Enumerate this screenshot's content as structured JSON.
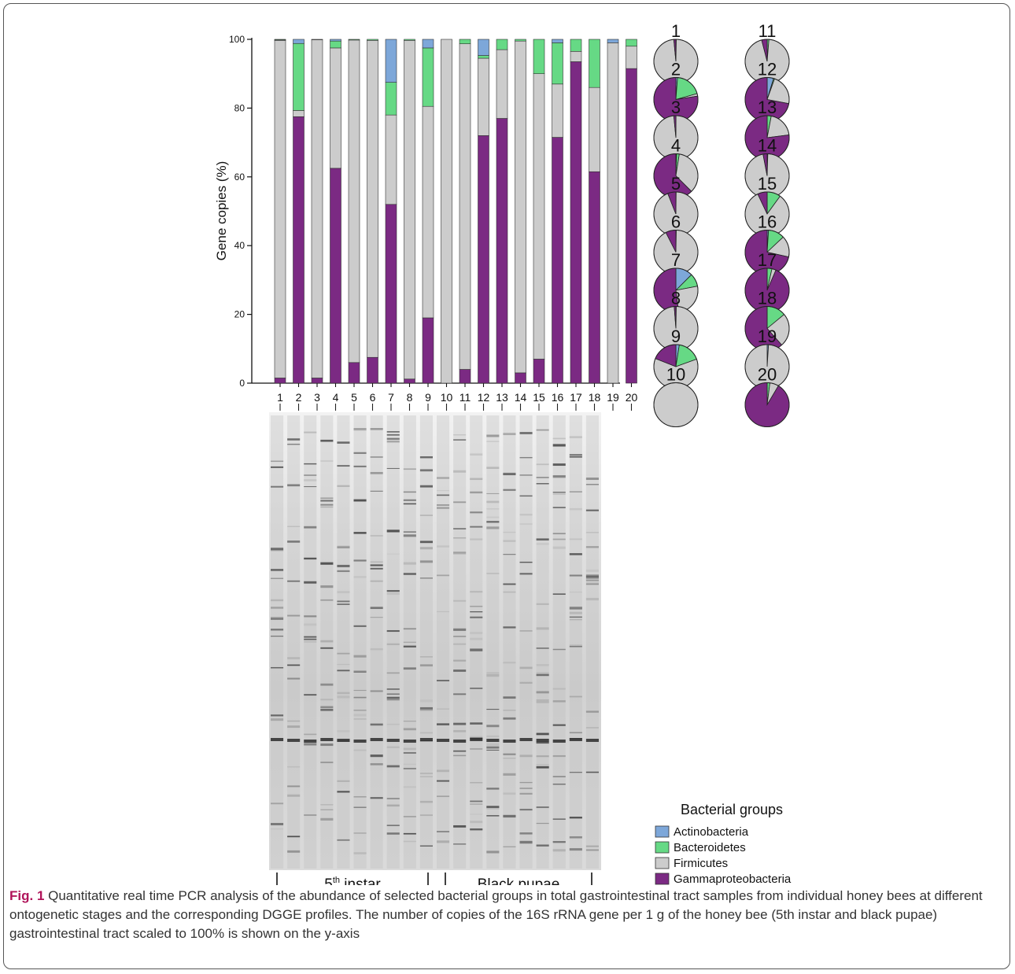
{
  "chart_data": [
    {
      "type": "bar",
      "stacked": true,
      "ylabel": "Gene copies (%)",
      "xlabel": "",
      "ylim": [
        0,
        100
      ],
      "yticks": [
        0,
        20,
        40,
        60,
        80,
        100
      ],
      "categories": [
        "1",
        "2",
        "3",
        "4",
        "5",
        "6",
        "7",
        "8",
        "9",
        "10",
        "11",
        "12",
        "13",
        "14",
        "15",
        "16",
        "17",
        "18",
        "19",
        "20"
      ],
      "series": [
        {
          "name": "Gammaproteobacteria",
          "color": "#7b2a83",
          "values": [
            1.5,
            77.5,
            1.5,
            62.5,
            6,
            7.5,
            52,
            1.2,
            19,
            0,
            4,
            72,
            77,
            3,
            7,
            71.5,
            93.5,
            61.5,
            0,
            91.5
          ]
        },
        {
          "name": "Firmicutes",
          "color": "#cccccc",
          "values": [
            98.2,
            1.8,
            98.4,
            35,
            93.8,
            92.2,
            26,
            98.5,
            61.5,
            100,
            94.7,
            22.5,
            20,
            96.5,
            83,
            15.5,
            3,
            24.5,
            99,
            6.5
          ]
        },
        {
          "name": "Bacteroidetes",
          "color": "#66d985",
          "values": [
            0.2,
            19.5,
            0.1,
            2,
            0.2,
            0.3,
            9.5,
            0.3,
            17,
            0,
            1.3,
            0.8,
            3,
            0.5,
            10,
            12,
            3.5,
            14,
            0,
            2
          ]
        },
        {
          "name": "Actinobacteria",
          "color": "#7da7d9",
          "values": [
            0.1,
            1.2,
            0,
            0.5,
            0,
            0,
            12.5,
            0,
            2.5,
            0,
            0,
            4.7,
            0,
            0,
            0,
            1,
            0,
            0,
            1,
            0
          ]
        }
      ]
    },
    {
      "type": "pie",
      "count": 20,
      "series_order": [
        "Actinobacteria",
        "Bacteroidetes",
        "Firmicutes",
        "Gammaproteobacteria"
      ],
      "pies": [
        {
          "label": "1",
          "values": [
            0.1,
            0.2,
            98.2,
            1.5
          ]
        },
        {
          "label": "2",
          "values": [
            1.2,
            19.5,
            1.8,
            77.5
          ]
        },
        {
          "label": "3",
          "values": [
            0,
            0.1,
            98.4,
            1.5
          ]
        },
        {
          "label": "4",
          "values": [
            0.5,
            2,
            35,
            62.5
          ]
        },
        {
          "label": "5",
          "values": [
            0,
            0.2,
            93.8,
            6
          ]
        },
        {
          "label": "6",
          "values": [
            0,
            0.3,
            92.2,
            7.5
          ]
        },
        {
          "label": "7",
          "values": [
            12.5,
            9.5,
            26,
            52
          ]
        },
        {
          "label": "8",
          "values": [
            0,
            0.3,
            98.5,
            1.2
          ]
        },
        {
          "label": "9",
          "values": [
            2.5,
            17,
            61.5,
            19
          ]
        },
        {
          "label": "10",
          "values": [
            0,
            0,
            100,
            0
          ]
        },
        {
          "label": "11",
          "values": [
            0,
            1.3,
            94.7,
            4
          ]
        },
        {
          "label": "12",
          "values": [
            4.7,
            0.8,
            22.5,
            72
          ]
        },
        {
          "label": "13",
          "values": [
            0,
            3,
            20,
            77
          ]
        },
        {
          "label": "14",
          "values": [
            0,
            0.5,
            96.5,
            3
          ]
        },
        {
          "label": "15",
          "values": [
            0,
            10,
            83,
            7
          ]
        },
        {
          "label": "16",
          "values": [
            1,
            12,
            15.5,
            71.5
          ]
        },
        {
          "label": "17",
          "values": [
            0,
            3.5,
            3,
            93.5
          ]
        },
        {
          "label": "18",
          "values": [
            0,
            14,
            24.5,
            61.5
          ]
        },
        {
          "label": "19",
          "values": [
            1,
            0,
            99,
            0
          ]
        },
        {
          "label": "20",
          "values": [
            0,
            2,
            6.5,
            91.5
          ]
        }
      ]
    }
  ],
  "gel": {
    "groups": [
      {
        "label": "5",
        "sup": "th",
        "text": " instar"
      },
      {
        "label": "Black pupae",
        "sup": "",
        "text": ""
      }
    ]
  },
  "legend": {
    "title": "Bacterial groups",
    "items": [
      {
        "name": "Actinobacteria",
        "color": "#7da7d9"
      },
      {
        "name": "Bacteroidetes",
        "color": "#66d985"
      },
      {
        "name": "Firmicutes",
        "color": "#cccccc"
      },
      {
        "name": "Gammaproteobacteria",
        "color": "#7b2a83"
      }
    ]
  },
  "caption": {
    "label": "Fig. 1",
    "text": " Quantitative real time PCR analysis of the abundance of selected bacterial groups in total gastrointestinal tract samples from individual honey bees at different ontogenetic stages and the corresponding DGGE profiles. The number of copies of the 16S rRNA gene per 1 g of the honey bee (5th instar and black pupae) gastrointestinal tract scaled to 100% is shown on the y-axis"
  }
}
